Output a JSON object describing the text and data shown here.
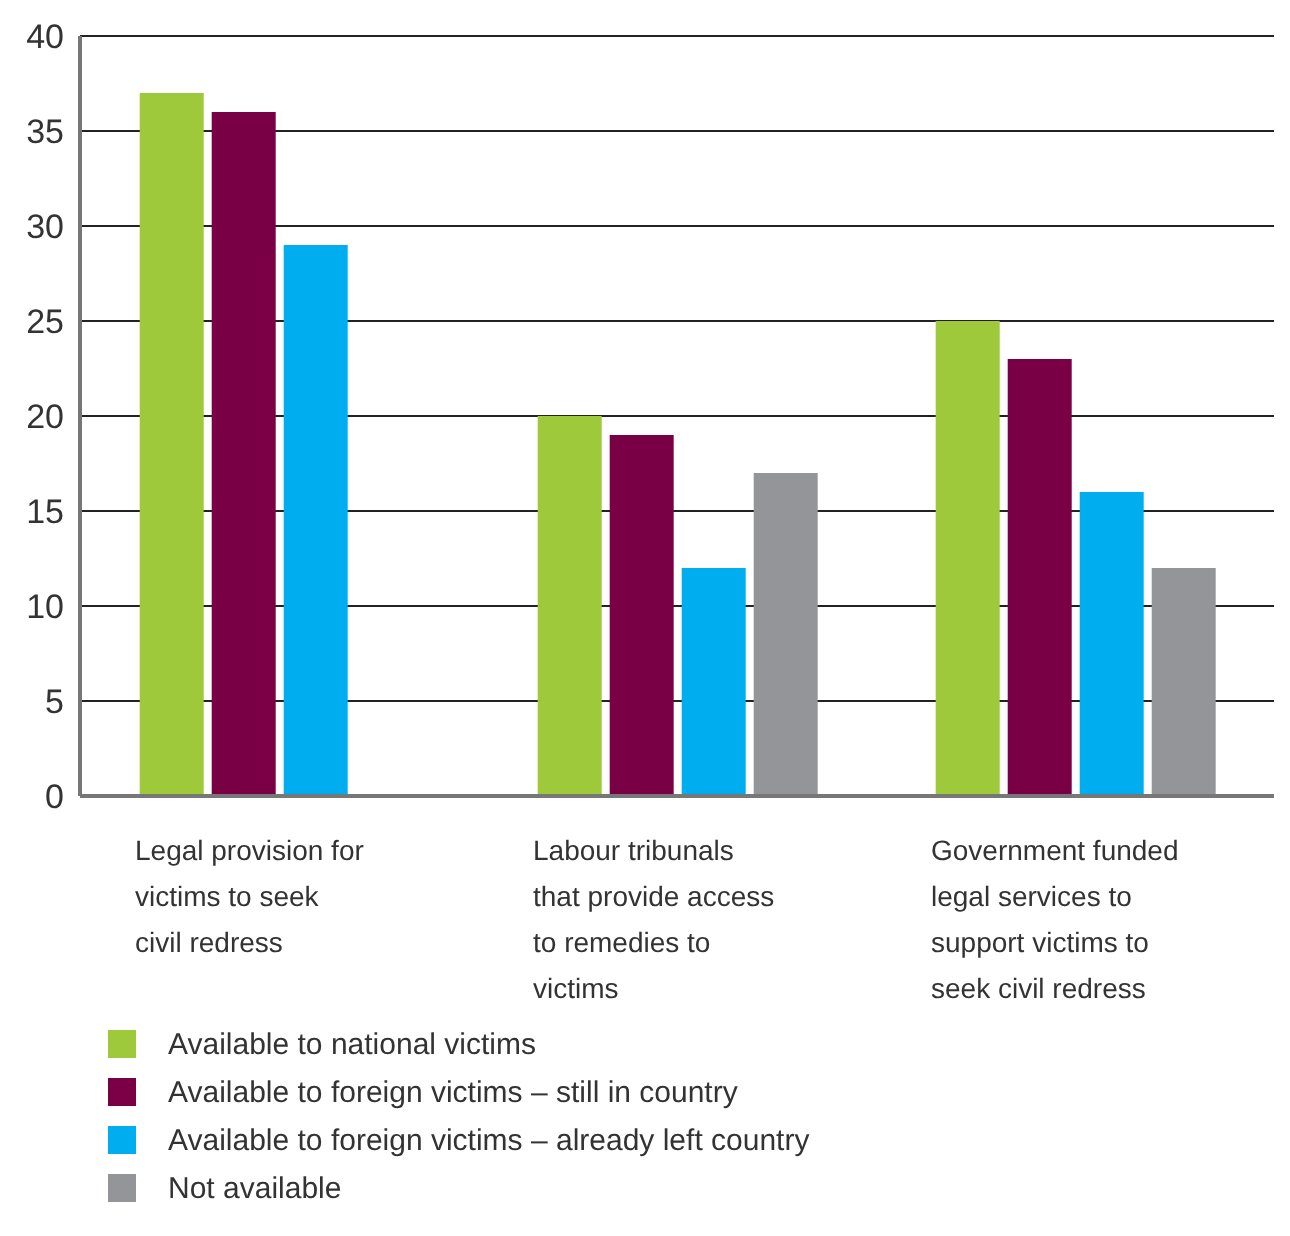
{
  "chart_data": {
    "type": "bar",
    "categories": [
      "Legal provision for victims to seek civil redress",
      "Labour tribunals that provide access to remedies to victims",
      "Government funded legal services to support victims to seek civil redress"
    ],
    "series": [
      {
        "name": "Available to national victims",
        "color": "#9dc93b",
        "values": [
          37,
          20,
          25
        ]
      },
      {
        "name": "Available to foreign victims – still in country",
        "color": "#7a0045",
        "values": [
          36,
          19,
          23
        ]
      },
      {
        "name": "Available to foreign victims – already left country",
        "color": "#00aeef",
        "values": [
          29,
          12,
          16
        ]
      },
      {
        "name": "Not available",
        "color": "#939598",
        "values": [
          null,
          17,
          12
        ]
      }
    ],
    "ylim": [
      0,
      40
    ],
    "yticks": [
      0,
      5,
      10,
      15,
      20,
      25,
      30,
      35,
      40
    ],
    "grid": "y",
    "legend": "bottom left"
  }
}
